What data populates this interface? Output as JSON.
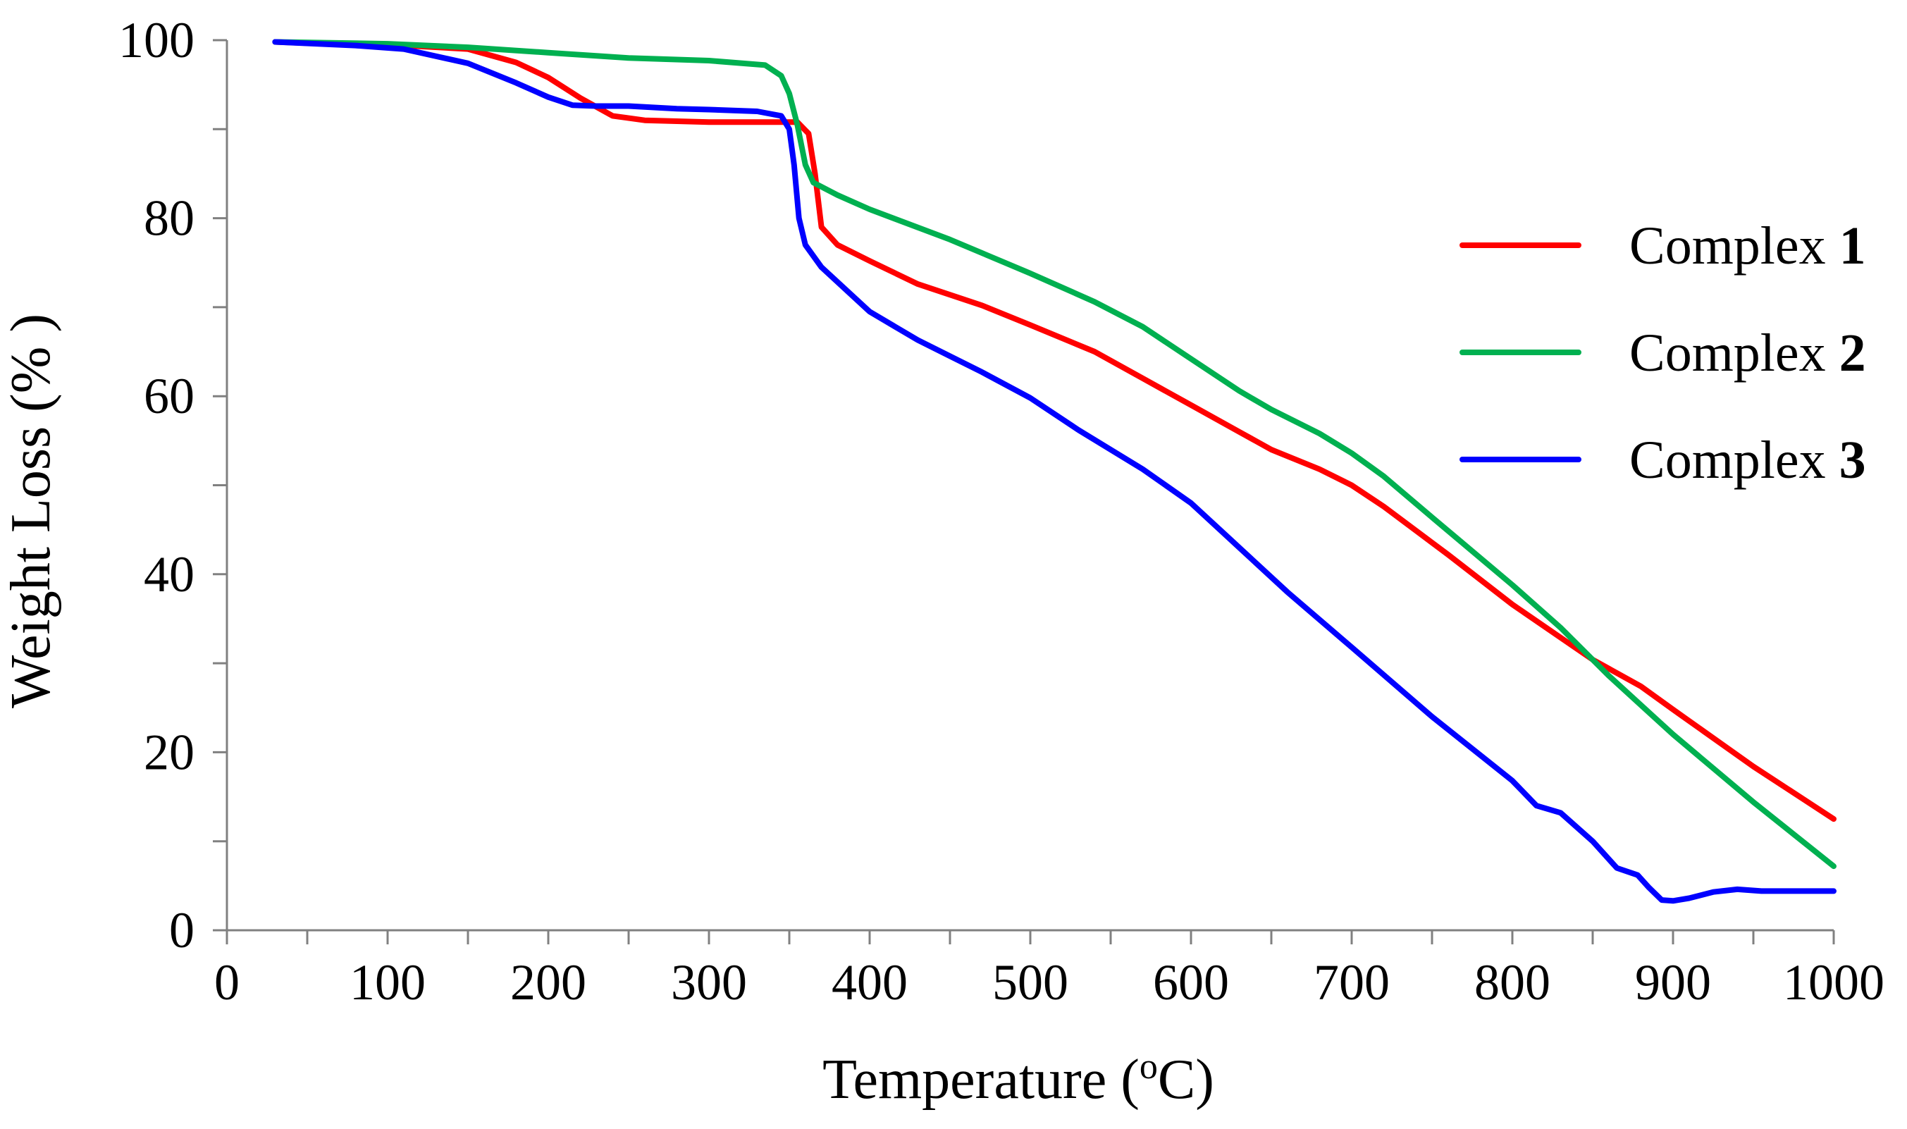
{
  "chart_data": {
    "type": "line",
    "title": "",
    "xlabel": "Temperature (",
    "xlabel_unit_sup": "o",
    "xlabel_unit": "C)",
    "ylabel": "Weight Loss (% )",
    "xlim": [
      0,
      1000
    ],
    "ylim": [
      0,
      100
    ],
    "xticks": [
      0,
      100,
      200,
      300,
      400,
      500,
      600,
      700,
      800,
      900,
      1000
    ],
    "yticks": [
      0,
      20,
      40,
      60,
      80,
      100
    ],
    "x_minor_step": 50,
    "y_minor_step": 10,
    "grid": false,
    "legend_position": "right",
    "series": [
      {
        "name": "Complex",
        "name_bold": "1",
        "color": "#ff0000",
        "points": [
          [
            30,
            99.8
          ],
          [
            60,
            99.6
          ],
          [
            100,
            99.5
          ],
          [
            150,
            99.0
          ],
          [
            180,
            97.5
          ],
          [
            200,
            95.8
          ],
          [
            220,
            93.5
          ],
          [
            240,
            91.5
          ],
          [
            260,
            91.0
          ],
          [
            300,
            90.8
          ],
          [
            340,
            90.8
          ],
          [
            355,
            90.8
          ],
          [
            362,
            89.5
          ],
          [
            366,
            85
          ],
          [
            370,
            79
          ],
          [
            380,
            77
          ],
          [
            400,
            75.2
          ],
          [
            430,
            72.6
          ],
          [
            470,
            70.2
          ],
          [
            500,
            68.0
          ],
          [
            540,
            65.0
          ],
          [
            570,
            62.0
          ],
          [
            600,
            59.0
          ],
          [
            630,
            56.0
          ],
          [
            650,
            54.0
          ],
          [
            680,
            51.8
          ],
          [
            700,
            50.0
          ],
          [
            720,
            47.6
          ],
          [
            760,
            42.2
          ],
          [
            800,
            36.6
          ],
          [
            850,
            30.4
          ],
          [
            880,
            27.4
          ],
          [
            900,
            24.8
          ],
          [
            950,
            18.4
          ],
          [
            1000,
            12.5
          ]
        ]
      },
      {
        "name": "Complex",
        "name_bold": "2",
        "color": "#00b050",
        "points": [
          [
            30,
            99.8
          ],
          [
            100,
            99.6
          ],
          [
            150,
            99.2
          ],
          [
            200,
            98.6
          ],
          [
            250,
            98.0
          ],
          [
            300,
            97.7
          ],
          [
            335,
            97.2
          ],
          [
            345,
            96.0
          ],
          [
            350,
            94.0
          ],
          [
            355,
            90.5
          ],
          [
            360,
            86.0
          ],
          [
            365,
            84.0
          ],
          [
            380,
            82.6
          ],
          [
            400,
            81.0
          ],
          [
            450,
            77.6
          ],
          [
            500,
            73.8
          ],
          [
            540,
            70.6
          ],
          [
            570,
            67.8
          ],
          [
            600,
            64.2
          ],
          [
            630,
            60.6
          ],
          [
            650,
            58.5
          ],
          [
            680,
            55.8
          ],
          [
            700,
            53.6
          ],
          [
            720,
            51.0
          ],
          [
            750,
            46.4
          ],
          [
            800,
            38.8
          ],
          [
            830,
            34.0
          ],
          [
            860,
            28.6
          ],
          [
            900,
            22.0
          ],
          [
            950,
            14.4
          ],
          [
            1000,
            7.2
          ]
        ]
      },
      {
        "name": "Complex",
        "name_bold": "3",
        "color": "#0000ff",
        "points": [
          [
            30,
            99.8
          ],
          [
            80,
            99.4
          ],
          [
            110,
            99.0
          ],
          [
            150,
            97.4
          ],
          [
            180,
            95.2
          ],
          [
            200,
            93.6
          ],
          [
            215,
            92.7
          ],
          [
            230,
            92.6
          ],
          [
            250,
            92.6
          ],
          [
            280,
            92.3
          ],
          [
            300,
            92.2
          ],
          [
            330,
            92.0
          ],
          [
            345,
            91.5
          ],
          [
            350,
            90.0
          ],
          [
            353,
            86.0
          ],
          [
            356,
            80.0
          ],
          [
            360,
            77.0
          ],
          [
            370,
            74.5
          ],
          [
            400,
            69.5
          ],
          [
            430,
            66.3
          ],
          [
            470,
            62.7
          ],
          [
            500,
            59.8
          ],
          [
            530,
            56.2
          ],
          [
            570,
            51.8
          ],
          [
            600,
            48.0
          ],
          [
            630,
            43.0
          ],
          [
            660,
            38.0
          ],
          [
            700,
            31.8
          ],
          [
            750,
            24.0
          ],
          [
            800,
            16.8
          ],
          [
            815,
            14.0
          ],
          [
            830,
            13.2
          ],
          [
            850,
            10.0
          ],
          [
            865,
            7.0
          ],
          [
            878,
            6.2
          ],
          [
            885,
            4.8
          ],
          [
            893,
            3.4
          ],
          [
            900,
            3.3
          ],
          [
            910,
            3.6
          ],
          [
            925,
            4.3
          ],
          [
            940,
            4.6
          ],
          [
            955,
            4.4
          ],
          [
            1000,
            4.4
          ]
        ]
      }
    ]
  }
}
